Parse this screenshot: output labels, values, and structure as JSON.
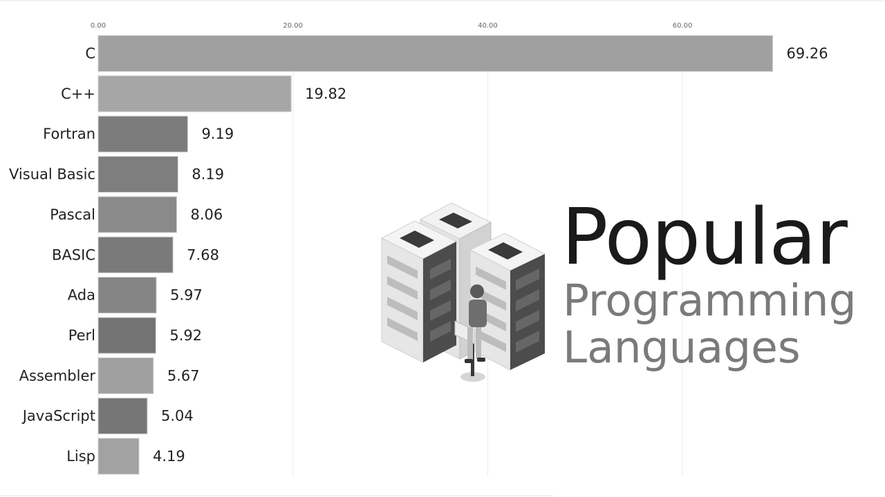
{
  "chart_data": {
    "type": "bar",
    "orientation": "horizontal",
    "categories": [
      "C",
      "C++",
      "Fortran",
      "Visual Basic",
      "Pascal",
      "BASIC",
      "Ada",
      "Perl",
      "Assembler",
      "JavaScript",
      "Lisp"
    ],
    "values": [
      69.26,
      19.82,
      9.19,
      8.19,
      8.06,
      7.68,
      5.97,
      5.92,
      5.67,
      5.04,
      4.19
    ],
    "value_labels": [
      "69.26",
      "19.82",
      "9.19",
      "8.19",
      "8.06",
      "7.68",
      "5.97",
      "5.92",
      "5.67",
      "5.04",
      "4.19"
    ],
    "xticks": [
      "0.00",
      "20.00",
      "40.00",
      "60.00"
    ],
    "xtick_values": [
      0,
      20,
      40,
      60
    ],
    "xlim": [
      0,
      80
    ],
    "bar_colors": [
      "#a0a0a0",
      "#a6a6a6",
      "#7c7c7c",
      "#7e7e7e",
      "#8a8a8a",
      "#7a7a7a",
      "#858585",
      "#747474",
      "#a0a0a0",
      "#767676",
      "#a2a2a2"
    ],
    "grid": true,
    "axis_position": "top"
  },
  "title": {
    "line1": "Popular",
    "line2": "Programming",
    "line3": "Languages"
  }
}
